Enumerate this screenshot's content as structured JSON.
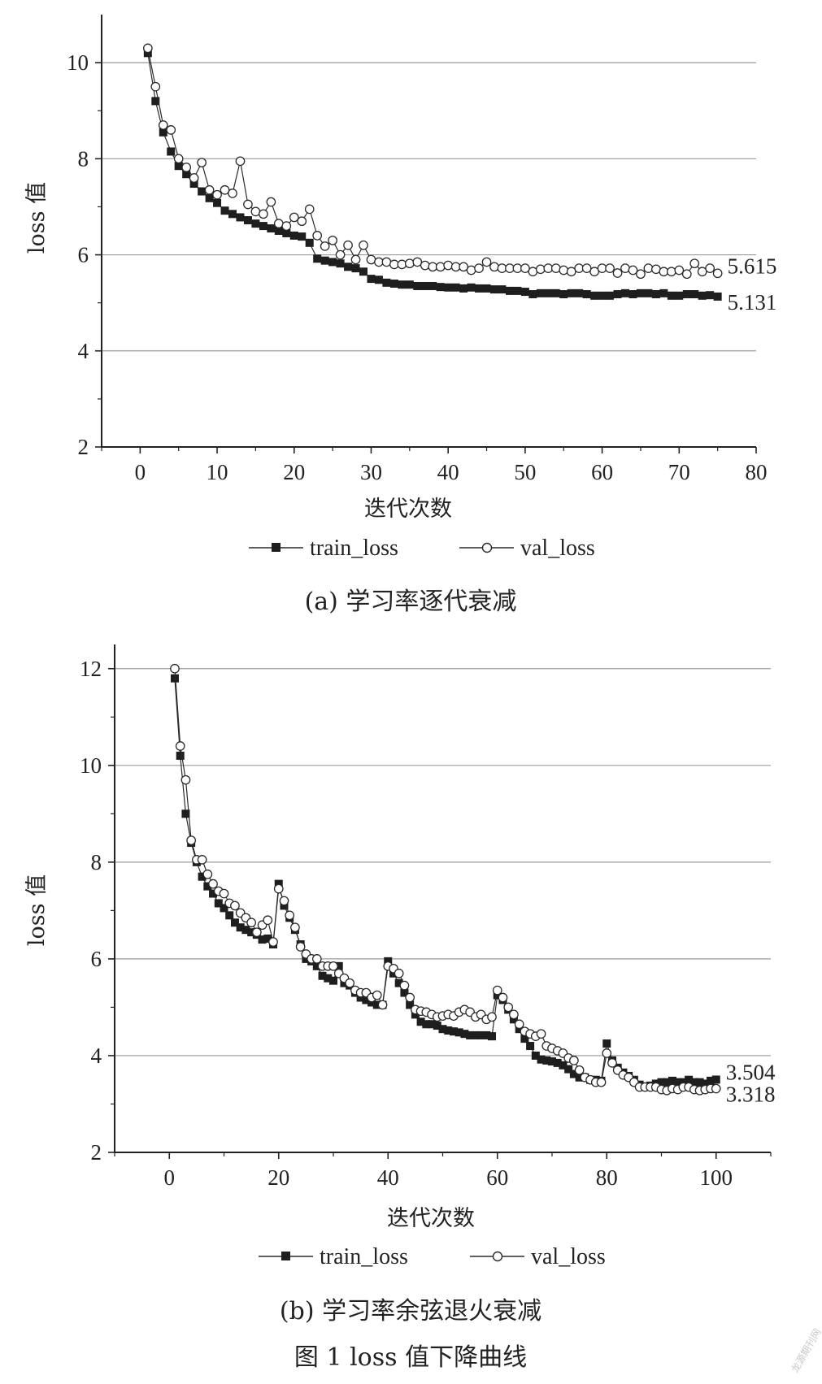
{
  "chart_data": [
    {
      "type": "line",
      "caption": "(a) 学习率逐代衰减",
      "xlabel": "迭代次数",
      "ylabel": "loss 值",
      "xlim": [
        -5,
        80
      ],
      "ylim": [
        2,
        11
      ],
      "xticks": [
        0,
        10,
        20,
        30,
        40,
        50,
        60,
        70,
        80
      ],
      "yticks": [
        2,
        4,
        6,
        8,
        10
      ],
      "grid": "horizontal",
      "legend_position": "bottom",
      "series": [
        {
          "name": "train_loss",
          "marker": "filled-square",
          "end_label": "5.131",
          "x": [
            1,
            2,
            3,
            4,
            5,
            6,
            7,
            8,
            9,
            10,
            11,
            12,
            13,
            14,
            15,
            16,
            17,
            18,
            19,
            20,
            21,
            22,
            23,
            24,
            25,
            26,
            27,
            28,
            29,
            30,
            31,
            32,
            33,
            34,
            35,
            36,
            37,
            38,
            39,
            40,
            41,
            42,
            43,
            44,
            45,
            46,
            47,
            48,
            49,
            50,
            51,
            52,
            53,
            54,
            55,
            56,
            57,
            58,
            59,
            60,
            61,
            62,
            63,
            64,
            65,
            66,
            67,
            68,
            69,
            70,
            71,
            72,
            73,
            74,
            75
          ],
          "values": [
            10.2,
            9.2,
            8.55,
            8.15,
            7.85,
            7.68,
            7.48,
            7.32,
            7.18,
            7.08,
            6.92,
            6.85,
            6.78,
            6.72,
            6.65,
            6.6,
            6.55,
            6.5,
            6.45,
            6.4,
            6.38,
            6.25,
            5.92,
            5.88,
            5.85,
            5.82,
            5.75,
            5.72,
            5.65,
            5.5,
            5.48,
            5.42,
            5.4,
            5.38,
            5.38,
            5.35,
            5.35,
            5.35,
            5.33,
            5.32,
            5.32,
            5.3,
            5.32,
            5.3,
            5.3,
            5.28,
            5.28,
            5.25,
            5.25,
            5.23,
            5.18,
            5.2,
            5.2,
            5.2,
            5.18,
            5.2,
            5.2,
            5.18,
            5.15,
            5.15,
            5.15,
            5.18,
            5.2,
            5.18,
            5.2,
            5.2,
            5.18,
            5.2,
            5.15,
            5.15,
            5.18,
            5.18,
            5.15,
            5.16,
            5.131
          ]
        },
        {
          "name": "val_loss",
          "marker": "open-circle",
          "end_label": "5.615",
          "x": [
            1,
            2,
            3,
            4,
            5,
            6,
            7,
            8,
            9,
            10,
            11,
            12,
            13,
            14,
            15,
            16,
            17,
            18,
            19,
            20,
            21,
            22,
            23,
            24,
            25,
            26,
            27,
            28,
            29,
            30,
            31,
            32,
            33,
            34,
            35,
            36,
            37,
            38,
            39,
            40,
            41,
            42,
            43,
            44,
            45,
            46,
            47,
            48,
            49,
            50,
            51,
            52,
            53,
            54,
            55,
            56,
            57,
            58,
            59,
            60,
            61,
            62,
            63,
            64,
            65,
            66,
            67,
            68,
            69,
            70,
            71,
            72,
            73,
            74,
            75
          ],
          "values": [
            10.3,
            9.5,
            8.7,
            8.6,
            8.0,
            7.82,
            7.6,
            7.92,
            7.35,
            7.25,
            7.35,
            7.28,
            7.95,
            7.05,
            6.9,
            6.85,
            7.1,
            6.65,
            6.6,
            6.78,
            6.7,
            6.95,
            6.4,
            6.18,
            6.3,
            6.0,
            6.2,
            5.9,
            6.2,
            5.9,
            5.85,
            5.85,
            5.8,
            5.8,
            5.82,
            5.85,
            5.78,
            5.75,
            5.75,
            5.78,
            5.75,
            5.75,
            5.68,
            5.72,
            5.85,
            5.75,
            5.72,
            5.72,
            5.72,
            5.72,
            5.65,
            5.7,
            5.72,
            5.72,
            5.68,
            5.65,
            5.72,
            5.72,
            5.65,
            5.72,
            5.72,
            5.62,
            5.72,
            5.68,
            5.6,
            5.72,
            5.7,
            5.65,
            5.65,
            5.68,
            5.6,
            5.82,
            5.65,
            5.72,
            5.615
          ]
        }
      ]
    },
    {
      "type": "line",
      "caption": "(b) 学习率余弦退火衰减",
      "xlabel": "迭代次数",
      "ylabel": "loss 值",
      "xlim": [
        -10,
        110
      ],
      "ylim": [
        2,
        12.5
      ],
      "xticks": [
        0,
        20,
        40,
        60,
        80,
        100
      ],
      "yticks": [
        2,
        4,
        6,
        8,
        10,
        12
      ],
      "grid": "horizontal",
      "legend_position": "bottom",
      "series": [
        {
          "name": "train_loss",
          "marker": "filled-square",
          "end_label": "3.504",
          "x": [
            1,
            2,
            3,
            4,
            5,
            6,
            7,
            8,
            9,
            10,
            11,
            12,
            13,
            14,
            15,
            16,
            17,
            18,
            19,
            20,
            21,
            22,
            23,
            24,
            25,
            26,
            27,
            28,
            29,
            30,
            31,
            32,
            33,
            34,
            35,
            36,
            37,
            38,
            39,
            40,
            41,
            42,
            43,
            44,
            45,
            46,
            47,
            48,
            49,
            50,
            51,
            52,
            53,
            54,
            55,
            56,
            57,
            58,
            59,
            60,
            61,
            62,
            63,
            64,
            65,
            66,
            67,
            68,
            69,
            70,
            71,
            72,
            73,
            74,
            75,
            76,
            77,
            78,
            79,
            80,
            81,
            82,
            83,
            84,
            85,
            86,
            87,
            88,
            89,
            90,
            91,
            92,
            93,
            94,
            95,
            96,
            97,
            98,
            99,
            100
          ],
          "values": [
            11.8,
            10.2,
            9.0,
            8.4,
            8.0,
            7.7,
            7.5,
            7.35,
            7.15,
            7.05,
            6.9,
            6.75,
            6.65,
            6.6,
            6.55,
            6.5,
            6.4,
            6.42,
            6.3,
            7.55,
            7.1,
            6.85,
            6.6,
            6.3,
            6.0,
            5.95,
            5.85,
            5.65,
            5.6,
            5.55,
            5.85,
            5.5,
            5.45,
            5.3,
            5.2,
            5.15,
            5.1,
            5.05,
            5.05,
            5.95,
            5.7,
            5.5,
            5.3,
            5.05,
            4.85,
            4.7,
            4.65,
            4.65,
            4.62,
            4.55,
            4.52,
            4.5,
            4.48,
            4.45,
            4.42,
            4.42,
            4.42,
            4.42,
            4.4,
            5.25,
            5.15,
            4.95,
            4.75,
            4.55,
            4.35,
            4.2,
            4.0,
            3.92,
            3.9,
            3.88,
            3.85,
            3.8,
            3.72,
            3.62,
            3.55,
            3.55,
            3.5,
            3.5,
            3.48,
            4.25,
            3.9,
            3.75,
            3.65,
            3.58,
            3.5,
            3.4,
            3.35,
            3.38,
            3.42,
            3.45,
            3.45,
            3.48,
            3.45,
            3.45,
            3.5,
            3.45,
            3.45,
            3.42,
            3.48,
            3.504
          ]
        },
        {
          "name": "val_loss",
          "marker": "open-circle",
          "end_label": "3.318",
          "x": [
            1,
            2,
            3,
            4,
            5,
            6,
            7,
            8,
            9,
            10,
            11,
            12,
            13,
            14,
            15,
            16,
            17,
            18,
            19,
            20,
            21,
            22,
            23,
            24,
            25,
            26,
            27,
            28,
            29,
            30,
            31,
            32,
            33,
            34,
            35,
            36,
            37,
            38,
            39,
            40,
            41,
            42,
            43,
            44,
            45,
            46,
            47,
            48,
            49,
            50,
            51,
            52,
            53,
            54,
            55,
            56,
            57,
            58,
            59,
            60,
            61,
            62,
            63,
            64,
            65,
            66,
            67,
            68,
            69,
            70,
            71,
            72,
            73,
            74,
            75,
            76,
            77,
            78,
            79,
            80,
            81,
            82,
            83,
            84,
            85,
            86,
            87,
            88,
            89,
            90,
            91,
            92,
            93,
            94,
            95,
            96,
            97,
            98,
            99,
            100
          ],
          "values": [
            12.0,
            10.4,
            9.7,
            8.45,
            8.05,
            8.05,
            7.75,
            7.55,
            7.4,
            7.35,
            7.15,
            7.1,
            6.95,
            6.85,
            6.75,
            6.55,
            6.7,
            6.8,
            6.35,
            7.45,
            7.2,
            6.9,
            6.65,
            6.25,
            6.1,
            6.0,
            6.0,
            5.85,
            5.85,
            5.85,
            5.7,
            5.6,
            5.5,
            5.35,
            5.3,
            5.3,
            5.2,
            5.25,
            5.05,
            5.85,
            5.8,
            5.7,
            5.45,
            5.2,
            4.95,
            4.92,
            4.9,
            4.85,
            4.8,
            4.82,
            4.85,
            4.82,
            4.9,
            4.95,
            4.9,
            4.8,
            4.85,
            4.75,
            4.8,
            5.35,
            5.2,
            5.0,
            4.85,
            4.65,
            4.5,
            4.45,
            4.4,
            4.45,
            4.2,
            4.15,
            4.1,
            4.05,
            3.95,
            3.9,
            3.7,
            3.55,
            3.5,
            3.45,
            3.45,
            4.05,
            3.85,
            3.7,
            3.6,
            3.55,
            3.45,
            3.35,
            3.35,
            3.35,
            3.35,
            3.3,
            3.28,
            3.32,
            3.3,
            3.35,
            3.35,
            3.3,
            3.28,
            3.3,
            3.32,
            3.318
          ]
        }
      ]
    }
  ],
  "figure_caption": "图 1 loss 值下降曲线",
  "watermark": "龙源期刊网",
  "colors": {
    "line": "#2a2a2a",
    "grid": "#9a9a9a",
    "marker_fill_open": "#ffffff",
    "marker_fill_solid": "#1e1e1e"
  }
}
